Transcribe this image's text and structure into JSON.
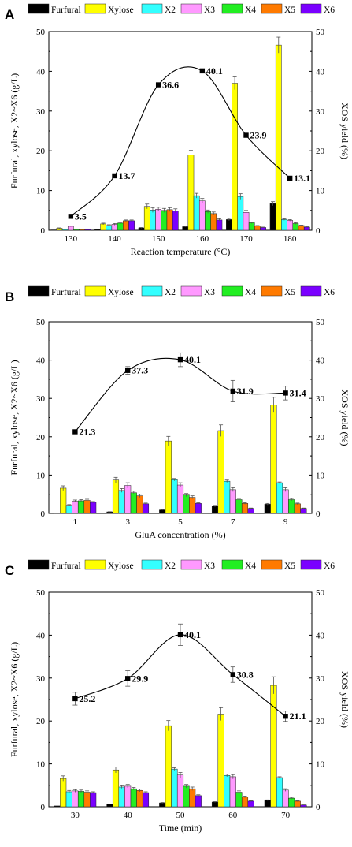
{
  "colors": {
    "Furfural": "#000000",
    "Xylose": "#ffff00",
    "X2": "#33ffff",
    "X3": "#ff99ff",
    "X4": "#22ee22",
    "X5": "#ff7a00",
    "X6": "#7a00ff"
  },
  "legend": [
    "Furfural",
    "Xylose",
    "X2",
    "X3",
    "X4",
    "X5",
    "X6"
  ],
  "chart_data": [
    {
      "type": "bar",
      "panel_label": "A",
      "xlabel": "Reaction temperature (°C)",
      "ylabel_left": "Furfural, xylose, X2~X6 (g/L)",
      "ylabel_right": "XOS yield (%)",
      "categories": [
        "130",
        "140",
        "150",
        "160",
        "170",
        "180"
      ],
      "ylim_left": [
        0,
        50
      ],
      "ylim_right": [
        0,
        50
      ],
      "yticks": [
        "0",
        "10",
        "20",
        "30",
        "40",
        "50"
      ],
      "series": [
        {
          "name": "Furfural",
          "values": [
            0.1,
            0.2,
            0.6,
            0.9,
            2.7,
            6.7
          ],
          "errors": [
            0,
            0,
            0.1,
            0.1,
            0.3,
            0.5
          ]
        },
        {
          "name": "Xylose",
          "values": [
            0.5,
            1.6,
            6.0,
            18.9,
            37.0,
            46.6
          ],
          "errors": [
            0.1,
            0.2,
            0.6,
            1.2,
            1.6,
            2.0
          ]
        },
        {
          "name": "X2",
          "values": [
            0.2,
            1.2,
            5.1,
            8.7,
            8.5,
            2.7
          ],
          "errors": [
            0,
            0.2,
            0.6,
            0.6,
            0.7,
            0.2
          ]
        },
        {
          "name": "X3",
          "values": [
            1.0,
            1.5,
            5.3,
            7.4,
            4.5,
            2.5
          ],
          "errors": [
            0.1,
            0.2,
            0.5,
            0.6,
            0.5,
            0.2
          ]
        },
        {
          "name": "X4",
          "values": [
            0.2,
            1.8,
            5.0,
            4.7,
            1.9,
            1.7
          ],
          "errors": [
            0,
            0.2,
            0.5,
            0.4,
            0.2,
            0.2
          ]
        },
        {
          "name": "X5",
          "values": [
            0.2,
            2.4,
            5.2,
            4.2,
            1.1,
            1.2
          ],
          "errors": [
            0,
            0.2,
            0.5,
            0.4,
            0.1,
            0.1
          ]
        },
        {
          "name": "X6",
          "values": [
            0.2,
            2.4,
            4.9,
            2.6,
            0.7,
            0.8
          ],
          "errors": [
            0,
            0.2,
            0.5,
            0.3,
            0.1,
            0.1
          ]
        }
      ],
      "yield": {
        "values": [
          3.5,
          13.7,
          36.6,
          40.1,
          23.9,
          13.1
        ],
        "labels": [
          "3.5",
          "13.7",
          "36.6",
          "40.1",
          "23.9",
          "13.1"
        ],
        "errors": [
          0,
          0,
          0,
          0,
          0,
          0
        ]
      }
    },
    {
      "type": "bar",
      "panel_label": "B",
      "xlabel": "GluA concentration (%)",
      "ylabel_left": "Furfural, xylose, X2~X6 (g/L)",
      "ylabel_right": "XOS yield (%)",
      "categories": [
        "1",
        "3",
        "5",
        "7",
        "9"
      ],
      "ylim_left": [
        0,
        50
      ],
      "ylim_right": [
        0,
        50
      ],
      "yticks": [
        "0",
        "10",
        "20",
        "30",
        "40",
        "50"
      ],
      "series": [
        {
          "name": "Furfural",
          "values": [
            0.1,
            0.4,
            0.9,
            1.9,
            2.4
          ],
          "errors": [
            0,
            0.05,
            0.1,
            0.2,
            0.2
          ]
        },
        {
          "name": "Xylose",
          "values": [
            6.6,
            8.7,
            18.9,
            21.6,
            28.3
          ],
          "errors": [
            0.6,
            0.7,
            1.2,
            1.5,
            2.0
          ]
        },
        {
          "name": "X2",
          "values": [
            2.1,
            6.0,
            8.8,
            8.4,
            8.0
          ],
          "errors": [
            0.2,
            0.5,
            0.3,
            0.3,
            0.2
          ]
        },
        {
          "name": "X3",
          "values": [
            3.2,
            7.3,
            7.4,
            6.2,
            6.2
          ],
          "errors": [
            0.3,
            0.7,
            0.6,
            0.5,
            0.5
          ]
        },
        {
          "name": "X4",
          "values": [
            3.3,
            5.4,
            4.8,
            3.6,
            3.6
          ],
          "errors": [
            0.3,
            0.4,
            0.4,
            0.3,
            0.3
          ]
        },
        {
          "name": "X5",
          "values": [
            3.4,
            4.6,
            4.2,
            2.6,
            2.5
          ],
          "errors": [
            0.3,
            0.4,
            0.4,
            0.2,
            0.2
          ]
        },
        {
          "name": "X6",
          "values": [
            2.9,
            2.5,
            2.6,
            1.3,
            1.3
          ],
          "errors": [
            0.2,
            0.2,
            0.2,
            0.1,
            0.1
          ]
        }
      ],
      "yield": {
        "values": [
          21.3,
          37.3,
          40.1,
          31.9,
          31.4
        ],
        "labels": [
          "21.3",
          "37.3",
          "40.1",
          "31.9",
          "31.4"
        ],
        "errors": [
          0,
          1.0,
          1.8,
          2.8,
          1.8
        ]
      }
    },
    {
      "type": "bar",
      "panel_label": "C",
      "xlabel": "Time (min)",
      "ylabel_left": "Furfural, xylose, X2~X6 (g/L)",
      "ylabel_right": "XOS yield (%)",
      "categories": [
        "30",
        "40",
        "50",
        "60",
        "70"
      ],
      "ylim_left": [
        0,
        50
      ],
      "ylim_right": [
        0,
        50
      ],
      "yticks": [
        "0",
        "10",
        "20",
        "30",
        "40",
        "50"
      ],
      "series": [
        {
          "name": "Furfural",
          "values": [
            0.2,
            0.6,
            0.9,
            1.1,
            1.5
          ],
          "errors": [
            0,
            0.05,
            0.1,
            0.1,
            0.1
          ]
        },
        {
          "name": "Xylose",
          "values": [
            6.6,
            8.6,
            18.9,
            21.6,
            28.3
          ],
          "errors": [
            0.6,
            0.7,
            1.2,
            1.5,
            2.0
          ]
        },
        {
          "name": "X2",
          "values": [
            3.5,
            4.6,
            8.8,
            7.3,
            6.8
          ],
          "errors": [
            0.3,
            0.3,
            0.3,
            0.3,
            0.2
          ]
        },
        {
          "name": "X3",
          "values": [
            3.7,
            4.8,
            7.4,
            7.0,
            3.9
          ],
          "errors": [
            0.3,
            0.4,
            0.6,
            0.5,
            0.3
          ]
        },
        {
          "name": "X4",
          "values": [
            3.6,
            4.2,
            4.8,
            3.4,
            2.0
          ],
          "errors": [
            0.3,
            0.3,
            0.4,
            0.3,
            0.2
          ]
        },
        {
          "name": "X5",
          "values": [
            3.4,
            3.8,
            4.2,
            2.3,
            1.3
          ],
          "errors": [
            0.3,
            0.3,
            0.4,
            0.2,
            0.1
          ]
        },
        {
          "name": "X6",
          "values": [
            3.3,
            3.3,
            2.6,
            1.3,
            0.4
          ],
          "errors": [
            0.2,
            0.2,
            0.2,
            0.1,
            0.05
          ]
        }
      ],
      "yield": {
        "values": [
          25.2,
          29.9,
          40.1,
          30.8,
          21.1
        ],
        "labels": [
          "25.2",
          "29.9",
          "40.1",
          "30.8",
          "21.1"
        ],
        "errors": [
          1.5,
          1.8,
          2.5,
          1.8,
          1.2
        ]
      }
    }
  ]
}
